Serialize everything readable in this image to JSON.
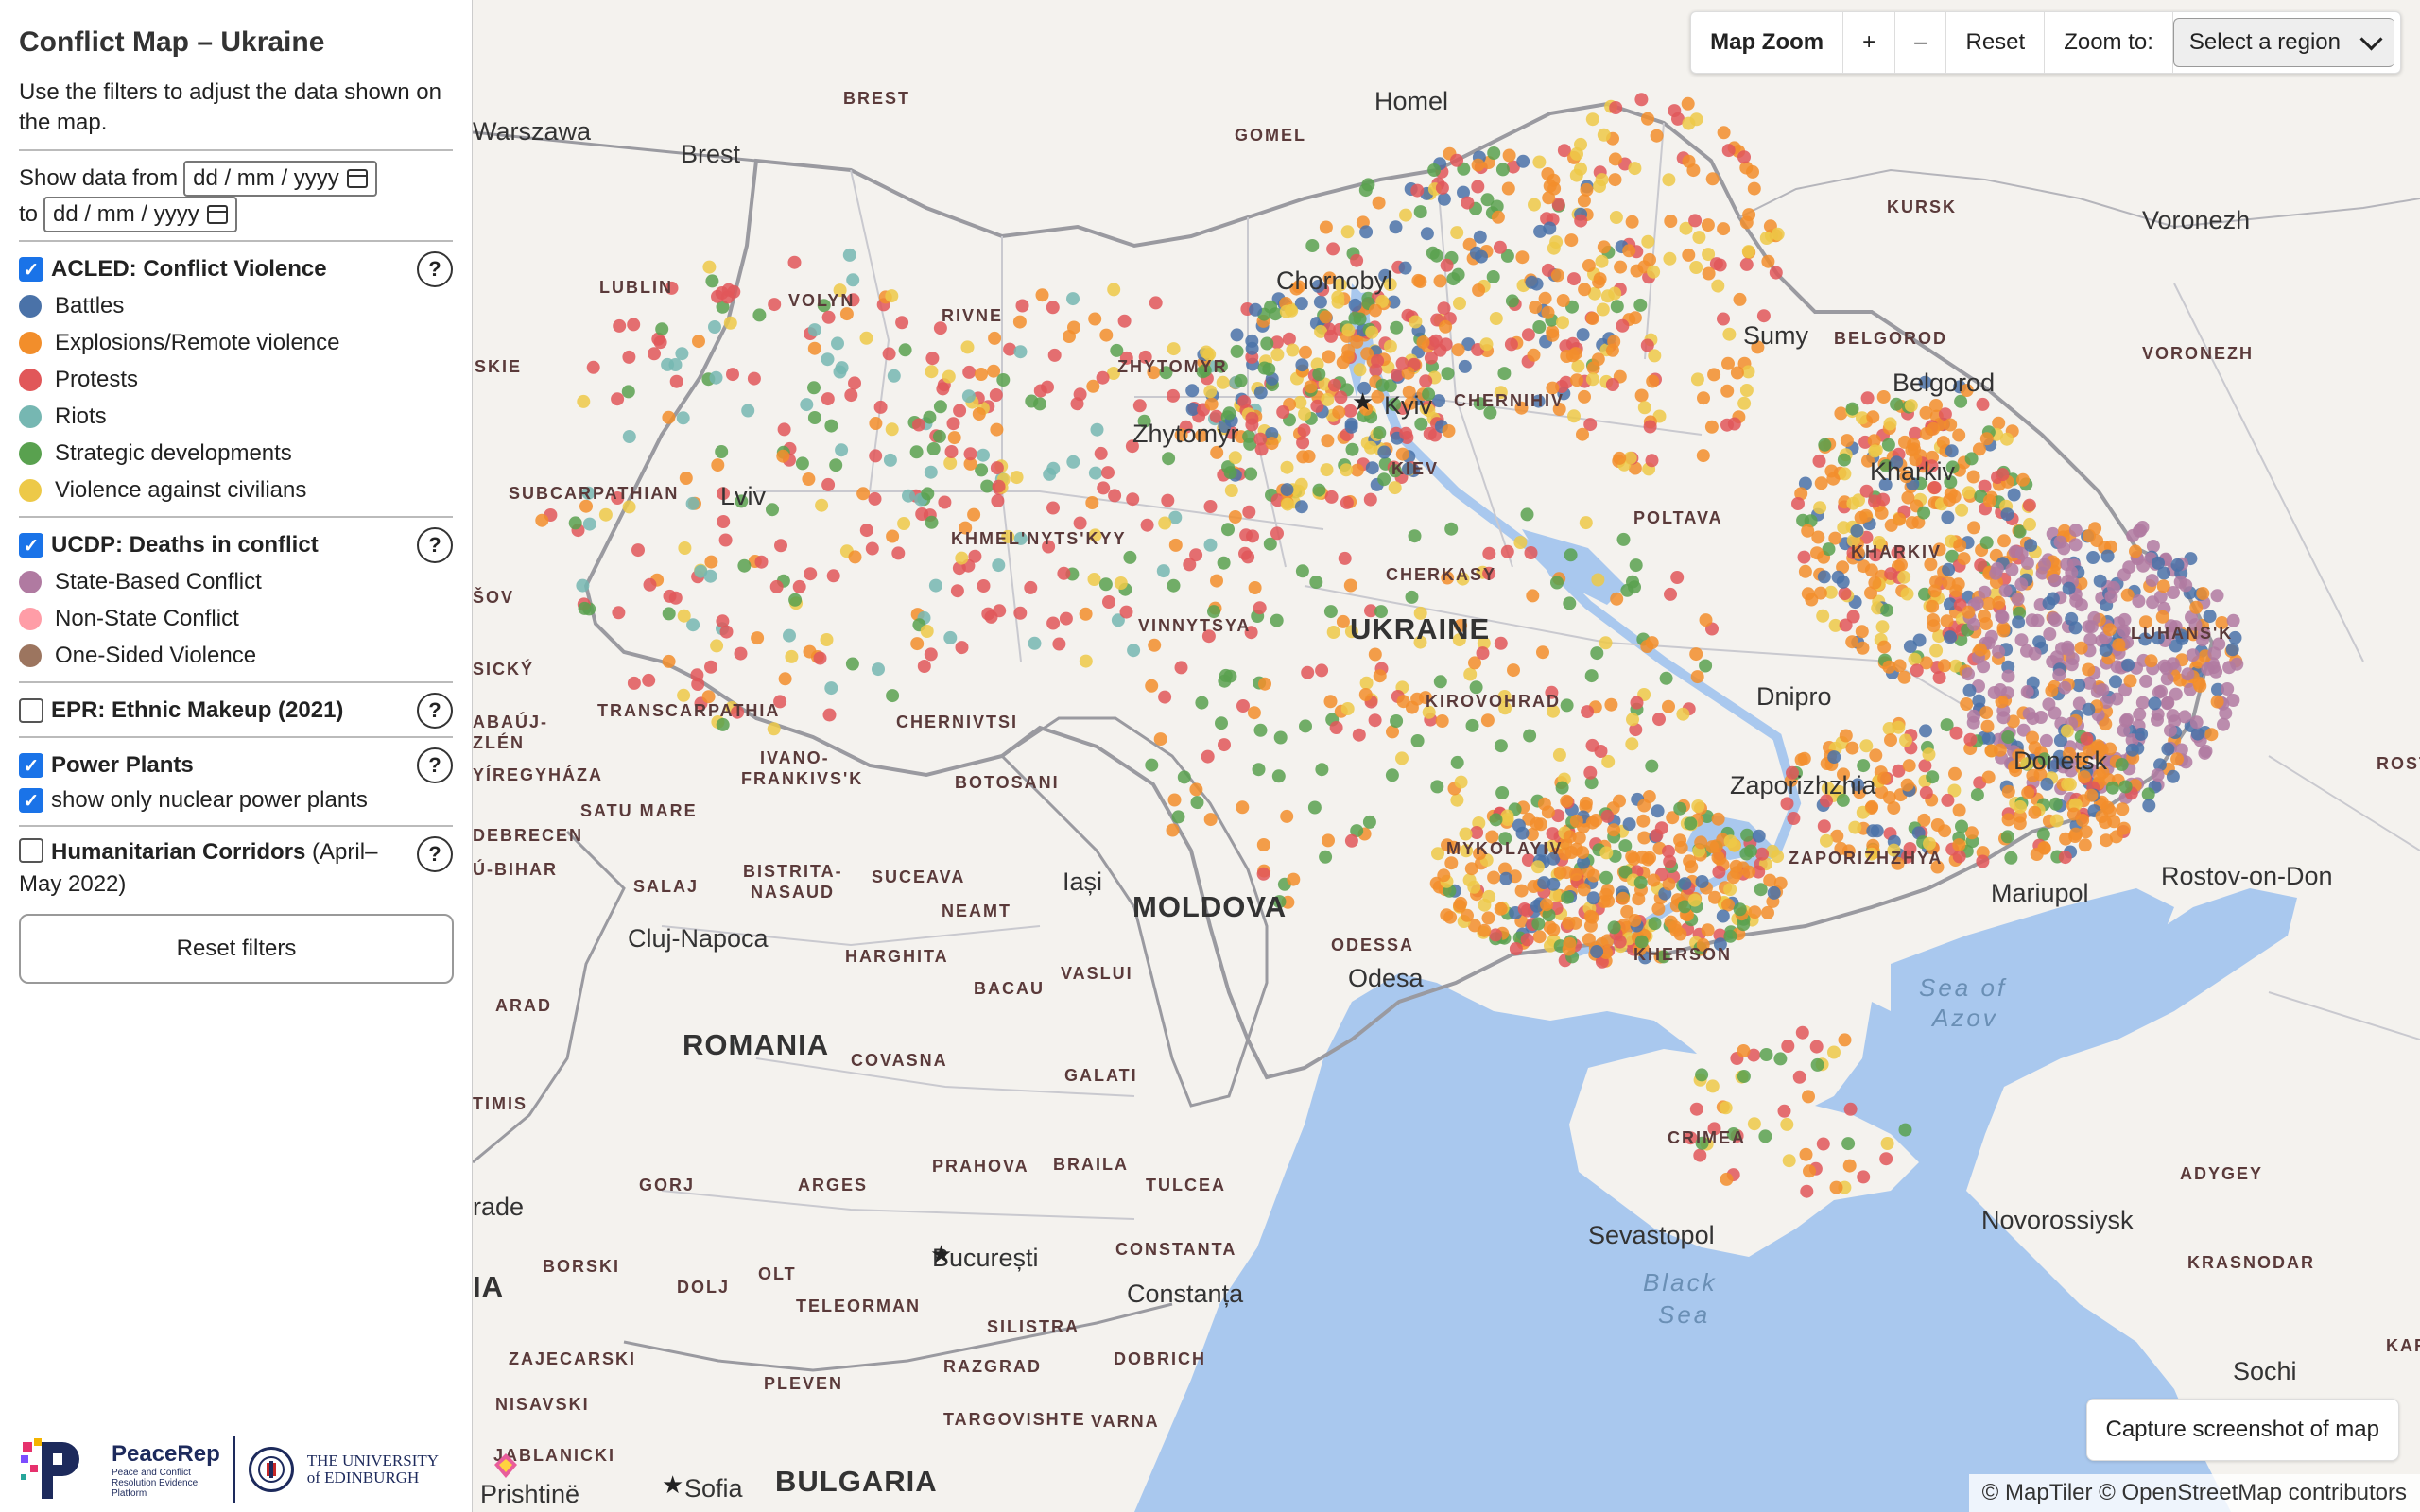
{
  "sidebar": {
    "title": "Conflict Map – Ukraine",
    "intro": "Use the filters to adjust the data shown on the map.",
    "date_from_label": "Show data from",
    "date_to_label": "to",
    "date_placeholder": "dd / mm / yyyy",
    "sections": {
      "acled": {
        "title": "ACLED: Conflict Violence",
        "checked": true,
        "items": [
          {
            "label": "Battles",
            "color": "#4a72a8"
          },
          {
            "label": "Explosions/Remote violence",
            "color": "#f28e2b"
          },
          {
            "label": "Protests",
            "color": "#e15759"
          },
          {
            "label": "Riots",
            "color": "#76b7b2"
          },
          {
            "label": "Strategic developments",
            "color": "#59a14f"
          },
          {
            "label": "Violence against civilians",
            "color": "#edc948"
          }
        ]
      },
      "ucdp": {
        "title": "UCDP: Deaths in conflict",
        "checked": true,
        "items": [
          {
            "label": "State-Based Conflict",
            "color": "#b07aa1"
          },
          {
            "label": "Non-State Conflict",
            "color": "#ff9da7"
          },
          {
            "label": "One-Sided Violence",
            "color": "#9c755f"
          }
        ]
      },
      "epr": {
        "title": "EPR: Ethnic Makeup (2021)",
        "checked": false
      },
      "power": {
        "title": "Power Plants",
        "checked": true,
        "sub_label": "show only nuclear power plants",
        "sub_checked": true
      },
      "humanitarian": {
        "title": "Humanitarian Corridors",
        "subtitle_a": " (April–",
        "subtitle_b": "May 2022)",
        "checked": false
      }
    },
    "help_label": "?",
    "reset_label": "Reset filters",
    "logos": {
      "peacerep_name": "PeaceRep",
      "peacerep_sub": "Peace and Conflict Resolution Evidence Platform",
      "ued_line1": "THE UNIVERSITY",
      "ued_line2": "of EDINBURGH"
    }
  },
  "toolbar": {
    "title": "Map Zoom",
    "zoom_in": "+",
    "zoom_out": "–",
    "reset": "Reset",
    "zoom_to": "Zoom to:",
    "region_select": "Select a region"
  },
  "map": {
    "capture_label": "Capture screenshot of map",
    "attribution": "© MapTiler © OpenStreetMap contributors",
    "labels": {
      "warszawa": "Warszawa",
      "brest": "Brest",
      "brest_r": "BREST",
      "homel": "Homel",
      "gomel": "GOMEL",
      "kursk": "KURSK",
      "voronezh": "Voronezh",
      "voronezh_r": "VORONEZH",
      "lublin": "LUBLIN",
      "volyn": "VOLYN",
      "rivne": "RIVNE",
      "chornobyl": "Chornobyl",
      "sumy": "Sumy",
      "belgorod_r": "BELGOROD",
      "belgorod": "Belgorod",
      "skie": "SKIE",
      "zhytomyr_r": "ZHYTOMYR",
      "kyiv": "Kyiv",
      "chernihiv": "CHERNIHIV",
      "zhytomyr": "Zhytomyr",
      "kiev": "KIEV",
      "kharkiv": "Kharkiv",
      "subcarpathian": "SUBCARPATHIAN",
      "lviv": "Lviv",
      "poltava": "POLTAVA",
      "kharkiv_r": "KHARKIV",
      "khmelnytskyy": "KHMEL'NYTS'KYY",
      "sov": "ŠOV",
      "cherkasy": "CHERKASY",
      "vinnytsya": "VINNYTSYA",
      "ukraine": "UKRAINE",
      "luhansk": "LUHANS'K",
      "rosto": "ROSTO",
      "dnipro": "Dnipro",
      "kirovohrad": "KIROVOHRAD",
      "transcarpathia": "TRANSCARPATHIA",
      "chernivtsi": "CHERNIVTSI",
      "ivano": "IVANO-",
      "frankivsk": "FRANKIVS'K",
      "donetsk": "Donetsk",
      "zaporizhzhia": "Zaporizhzhia",
      "botosani": "BOTOSANI",
      "satu_mare": "SATU MARE",
      "mykolayiv": "MYKOLAYIV",
      "zaporizhzhya": "ZAPORIZHZHYA",
      "debrecen": "DEBRECEN",
      "bistrita": "BISTRITA-",
      "nasaud": "NASAUD",
      "suceava": "SUCEAVA",
      "iasi": "Iași",
      "moldova": "MOLDOVA",
      "odessa_r": "ODESSA",
      "odesa": "Odesa",
      "kherson": "KHERSON",
      "mariupol": "Mariupol",
      "rostov": "Rostov-on-Don",
      "salaj": "SALAJ",
      "neamt": "NEAMT",
      "cluj": "Cluj-Napoca",
      "harghita": "HARGHITA",
      "vaslui": "VASLUI",
      "bacau": "BACAU",
      "sea_of": "Sea of",
      "azov": "Azov",
      "arad": "ARAD",
      "romania": "ROMANIA",
      "covasna": "COVASNA",
      "galati": "GALATI",
      "timis": "TIMIS",
      "crimea": "CRIMEA",
      "adygey": "ADYGEY",
      "gorj": "GORJ",
      "arges": "ARGES",
      "prahova": "PRAHOVA",
      "braila": "BRAILA",
      "tulcea": "TULCEA",
      "rade": "rade",
      "sevastopol": "Sevastopol",
      "novorossiysk": "Novorossiysk",
      "krasnodar": "KRASNODAR",
      "bucuresti": "București",
      "constanta_r": "CONSTANTA",
      "borski": "BORSKI",
      "olt": "OLT",
      "black": "Black",
      "sea": "Sea",
      "ia": "IA",
      "dolj": "DOLJ",
      "teleorman": "TELEORMAN",
      "constanta": "Constanța",
      "silistra": "SILISTRA",
      "zajecarski": "ZAJECARSKI",
      "razgrad": "RAZGRAD",
      "dobrich": "DOBRICH",
      "sochi": "Sochi",
      "nisavski": "NISAVSKI",
      "pleven": "PLEVEN",
      "targovishte": "TARGOVISHTE",
      "varna": "VARNA",
      "jablanicki": "JABLANICKI",
      "bulgaria": "BULGARIA",
      "sofia": "Sofia",
      "pristina": "Prishtinë",
      "bihar": "Ú-BIHAR",
      "abauj": "ABAÚJ-",
      "zlen": "ZLÉN",
      "yiregyhaza": "YÍREGYHÁZA",
      "kar": "KAR",
      "cki": "CKI",
      "homel_r": "GOMEL",
      "sicky": "SICKÝ",
      "vinnytsya2": "",
      "kirovohrad2": ""
    }
  }
}
